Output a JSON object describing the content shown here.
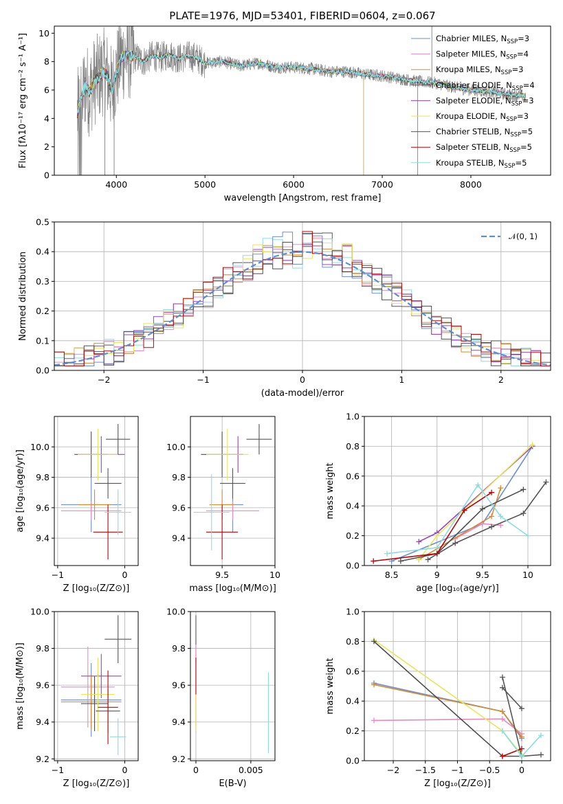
{
  "figure": {
    "title": "PLATE=1976, MJD=53401, FIBERID=0604, z=0.067"
  },
  "colors": {
    "data": "#808080",
    "series": [
      "#6a8fd6",
      "#e78ac3",
      "#d98a2b",
      "#4d4d4d",
      "#9b3fbf",
      "#e6e65a",
      "#555555",
      "#c00000",
      "#88dde0"
    ],
    "gaussian": "#5a8fd6"
  },
  "chart_data": [
    {
      "id": "spectrum",
      "type": "line",
      "title": "PLATE=1976, MJD=53401, FIBERID=0604, z=0.067",
      "xlabel": "wavelength [Angstrom, rest frame]",
      "ylabel": "Flux [fλ10⁻¹⁷ erg cm⁻² s⁻¹ A⁻¹]",
      "xlim": [
        3300,
        8900
      ],
      "ylim": [
        0,
        10.5
      ],
      "xticks": [
        4000,
        5000,
        6000,
        7000,
        8000
      ],
      "yticks": [
        0,
        2,
        4,
        6,
        8,
        10
      ],
      "grid": false,
      "legend_position": "top-right",
      "legend": [
        {
          "base": "Chabrier MILES, N",
          "sub": "SSP",
          "tail": "=3"
        },
        {
          "base": "Salpeter MILES, N",
          "sub": "SSP",
          "tail": "=4"
        },
        {
          "base": "Kroupa MILES, N",
          "sub": "SSP",
          "tail": "=3"
        },
        {
          "base": "Chabrier ELODIE, N",
          "sub": "SSP",
          "tail": "=4"
        },
        {
          "base": "Salpeter ELODIE, N",
          "sub": "SSP",
          "tail": "=3"
        },
        {
          "base": "Kroupa ELODIE, N",
          "sub": "SSP",
          "tail": "=3"
        },
        {
          "base": "Chabrier STELIB, N",
          "sub": "SSP",
          "tail": "=5"
        },
        {
          "base": "Salpeter STELIB, N",
          "sub": "SSP",
          "tail": "=5"
        },
        {
          "base": "Kroupa STELIB, N",
          "sub": "SSP",
          "tail": "=5"
        }
      ],
      "model_continuum": {
        "x": [
          3560,
          3650,
          3700,
          3750,
          3800,
          3850,
          3900,
          3950,
          4000,
          4050,
          4100,
          4200,
          4300,
          4400,
          4500,
          4600,
          4700,
          4800,
          4900,
          5000,
          5200,
          5400,
          5600,
          5800,
          6000,
          6200,
          6400,
          6600,
          6800,
          7000,
          7200,
          7400,
          7600,
          7800,
          8000,
          8200,
          8400,
          8600,
          8620
        ],
        "y": [
          4.3,
          6.4,
          5.8,
          6.6,
          6.9,
          7.3,
          7.0,
          5.9,
          7.2,
          8.3,
          8.4,
          8.4,
          8.0,
          8.4,
          8.3,
          8.5,
          8.2,
          8.4,
          8.3,
          7.9,
          8.0,
          7.7,
          7.9,
          7.6,
          7.6,
          7.5,
          7.3,
          7.3,
          7.1,
          7.0,
          6.8,
          6.6,
          6.5,
          6.2,
          6.0,
          5.9,
          5.7,
          5.6,
          5.3
        ]
      }
    },
    {
      "id": "residuals",
      "type": "line",
      "xlabel": "(data-model)/error",
      "ylabel": "Normed distribution",
      "xlim": [
        -2.5,
        2.5
      ],
      "ylim": [
        0,
        0.5
      ],
      "xticks": [
        -2,
        -1,
        0,
        1,
        2
      ],
      "yticks": [
        0.0,
        0.1,
        0.2,
        0.3,
        0.4,
        0.5
      ],
      "grid": true,
      "legend_position": "top-right",
      "legend_label": "𝒩(0, 1)",
      "gaussian": {
        "mean": 0,
        "sigma": 1
      }
    },
    {
      "id": "age_vs_Z",
      "type": "scatter",
      "xlabel": "Z [log₁₀(Z/Z⊙)]",
      "ylabel": "age  [log₁₀(age/yr)]",
      "xlim": [
        -1.05,
        0.2
      ],
      "ylim": [
        9.22,
        10.2
      ],
      "xticks": [
        -1,
        0
      ],
      "yticks": [
        9.4,
        9.6,
        9.8,
        10.0
      ],
      "grid": true,
      "points": [
        {
          "x": -0.5,
          "y": 9.62,
          "xerr": 0.45,
          "yerr": 0.18,
          "c": 0
        },
        {
          "x": -0.5,
          "y": 9.58,
          "xerr": 0.45,
          "yerr": 0.06,
          "c": 1
        },
        {
          "x": -0.45,
          "y": 9.62,
          "xerr": 0.25,
          "yerr": 0.1,
          "c": 2
        },
        {
          "x": -0.5,
          "y": 9.95,
          "xerr": 0.25,
          "yerr": 0.15,
          "c": 3
        },
        {
          "x": -0.35,
          "y": 9.95,
          "xerr": 0.35,
          "yerr": 0.12,
          "c": 4
        },
        {
          "x": -0.4,
          "y": 9.95,
          "xerr": 0.3,
          "yerr": 0.17,
          "c": 5
        },
        {
          "x": -0.25,
          "y": 9.76,
          "xerr": 0.2,
          "yerr": 0.1,
          "c": 6
        },
        {
          "x": -0.25,
          "y": 9.44,
          "xerr": 0.22,
          "yerr": 0.18,
          "c": 7
        },
        {
          "x": -0.1,
          "y": 9.57,
          "xerr": 0.2,
          "yerr": 0.15,
          "c": 8
        },
        {
          "x": -0.1,
          "y": 10.05,
          "xerr": 0.18,
          "yerr": 0.1,
          "c": 6
        }
      ]
    },
    {
      "id": "age_vs_mass",
      "type": "scatter",
      "xlabel": "mass [log₁₀(M/M⊙)]",
      "ylabel": "",
      "xlim": [
        9.2,
        10.0
      ],
      "ylim": [
        9.22,
        10.2
      ],
      "xticks": [
        9.5,
        10.0
      ],
      "yticks": [
        9.4,
        9.6,
        9.8,
        10.0
      ],
      "grid": true,
      "points": [
        {
          "x": 9.6,
          "y": 9.62,
          "xerr": 0.1,
          "yerr": 0.18,
          "c": 0
        },
        {
          "x": 9.6,
          "y": 9.58,
          "xerr": 0.25,
          "yerr": 0.06,
          "c": 1
        },
        {
          "x": 9.5,
          "y": 9.62,
          "xerr": 0.12,
          "yerr": 0.1,
          "c": 2
        },
        {
          "x": 9.5,
          "y": 9.95,
          "xerr": 0.2,
          "yerr": 0.15,
          "c": 3
        },
        {
          "x": 9.65,
          "y": 9.95,
          "xerr": 0.05,
          "yerr": 0.12,
          "c": 4
        },
        {
          "x": 9.55,
          "y": 9.95,
          "xerr": 0.2,
          "yerr": 0.17,
          "c": 5
        },
        {
          "x": 9.6,
          "y": 9.76,
          "xerr": 0.12,
          "yerr": 0.1,
          "c": 6
        },
        {
          "x": 9.5,
          "y": 9.44,
          "xerr": 0.15,
          "yerr": 0.18,
          "c": 7
        },
        {
          "x": 9.4,
          "y": 9.57,
          "xerr": 0.17,
          "yerr": 0.25,
          "c": 8
        },
        {
          "x": 9.85,
          "y": 10.05,
          "xerr": 0.12,
          "yerr": 0.1,
          "c": 6
        }
      ]
    },
    {
      "id": "massweight_vs_age",
      "type": "line",
      "xlabel": "age  [log₁₀(age/yr)]",
      "ylabel": "mass weight",
      "xlim": [
        8.2,
        10.25
      ],
      "ylim": [
        0,
        1.0
      ],
      "xticks": [
        8.5,
        9.0,
        9.5,
        10.0
      ],
      "yticks": [
        0.0,
        0.2,
        0.4,
        0.6,
        0.8,
        1.0
      ],
      "grid": true,
      "series": [
        {
          "c": 0,
          "x": [
            8.5,
            9.5,
            10.05
          ],
          "y": [
            0.03,
            0.28,
            0.8
          ]
        },
        {
          "c": 1,
          "x": [
            9.2,
            9.5,
            9.7
          ],
          "y": [
            0.18,
            0.28,
            0.27
          ]
        },
        {
          "c": 2,
          "x": [
            8.8,
            9.6,
            9.7
          ],
          "y": [
            0.04,
            0.33,
            0.52
          ]
        },
        {
          "c": 4,
          "x": [
            8.8,
            9.0,
            10.05
          ],
          "y": [
            0.16,
            0.22,
            0.8
          ]
        },
        {
          "c": 5,
          "x": [
            8.8,
            9.0,
            10.05
          ],
          "y": [
            0.04,
            0.2,
            0.81
          ]
        },
        {
          "c": 6,
          "x": [
            8.9,
            9.2,
            9.6,
            9.95,
            10.2
          ],
          "y": [
            0.04,
            0.15,
            0.26,
            0.35,
            0.56
          ]
        },
        {
          "c": 3,
          "x": [
            8.6,
            9.0,
            9.5,
            9.95
          ],
          "y": [
            0.03,
            0.08,
            0.38,
            0.51
          ]
        },
        {
          "c": 7,
          "x": [
            8.3,
            9.0,
            9.3,
            9.6
          ],
          "y": [
            0.03,
            0.08,
            0.37,
            0.49
          ]
        },
        {
          "c": 8,
          "x": [
            8.45,
            9.0,
            9.45,
            9.7,
            10.0
          ],
          "y": [
            0.08,
            0.12,
            0.54,
            0.33,
            0.2
          ]
        }
      ]
    },
    {
      "id": "mass_vs_Z",
      "type": "scatter",
      "xlabel": "Z [log₁₀(Z/Z⊙)]",
      "ylabel": "mass [log₁₀(M/M⊙)]",
      "xlim": [
        -1.05,
        0.2
      ],
      "ylim": [
        9.19,
        10.0
      ],
      "xticks": [
        -1,
        0
      ],
      "yticks": [
        9.2,
        9.4,
        9.6,
        9.8,
        10.0
      ],
      "grid": true,
      "points": [
        {
          "x": -0.5,
          "y": 9.52,
          "xerr": 0.45,
          "yerr": 0.2,
          "c": 0
        },
        {
          "x": -0.55,
          "y": 9.59,
          "xerr": 0.4,
          "yerr": 0.22,
          "c": 1
        },
        {
          "x": -0.5,
          "y": 9.51,
          "xerr": 0.45,
          "yerr": 0.15,
          "c": 2
        },
        {
          "x": -0.45,
          "y": 9.5,
          "xerr": 0.2,
          "yerr": 0.15,
          "c": 3
        },
        {
          "x": -0.35,
          "y": 9.65,
          "xerr": 0.3,
          "yerr": 0.12,
          "c": 4
        },
        {
          "x": -0.4,
          "y": 9.55,
          "xerr": 0.25,
          "yerr": 0.2,
          "c": 5
        },
        {
          "x": -0.25,
          "y": 9.46,
          "xerr": 0.18,
          "yerr": 0.12,
          "c": 6
        },
        {
          "x": -0.25,
          "y": 9.48,
          "xerr": 0.15,
          "yerr": 0.2,
          "c": 7
        },
        {
          "x": -0.1,
          "y": 9.32,
          "xerr": 0.12,
          "yerr": 0.1,
          "c": 8
        },
        {
          "x": -0.1,
          "y": 9.85,
          "xerr": 0.2,
          "yerr": 0.13,
          "c": 6
        }
      ]
    },
    {
      "id": "mass_vs_EBV",
      "type": "scatter",
      "xlabel": "E(B-V)",
      "ylabel": "",
      "xlim": [
        -0.0005,
        0.0072
      ],
      "ylim": [
        9.19,
        10.0
      ],
      "xticks": [
        0.0,
        0.005
      ],
      "ytickvals": [
        9.2,
        9.4,
        9.6,
        9.8,
        10.0
      ],
      "grid": true,
      "points": [
        {
          "x": 0.0,
          "y": 9.85,
          "yerr": 0.13,
          "c": 6
        },
        {
          "x": 0.0,
          "y": 9.6,
          "yerr": 0.22,
          "c": 1
        },
        {
          "x": 0.0,
          "y": 9.55,
          "yerr": 0.2,
          "c": 7
        },
        {
          "x": 0.0,
          "y": 9.45,
          "yerr": 0.1,
          "c": 5
        },
        {
          "x": 0.0066,
          "y": 9.45,
          "yerr": 0.22,
          "c": 8
        }
      ]
    },
    {
      "id": "massweight_vs_Z",
      "type": "line",
      "xlabel": "Z [log₁₀(Z/Z⊙)]",
      "ylabel": "mass weight",
      "xlim": [
        -2.45,
        0.45
      ],
      "ylim": [
        0,
        1.0
      ],
      "xticks": [
        -2.0,
        -1.5,
        -1.0,
        -0.5,
        0.0
      ],
      "yticks": [
        0.0,
        0.2,
        0.4,
        0.6,
        0.8,
        1.0
      ],
      "grid": true,
      "series": [
        {
          "c": 0,
          "x": [
            -2.3,
            -0.3,
            0.0
          ],
          "y": [
            0.52,
            0.33,
            0.15
          ]
        },
        {
          "c": 1,
          "x": [
            -2.3,
            -0.3,
            0.0
          ],
          "y": [
            0.27,
            0.28,
            0.18
          ]
        },
        {
          "c": 2,
          "x": [
            -2.3,
            -0.3,
            0.0
          ],
          "y": [
            0.51,
            0.33,
            0.16
          ]
        },
        {
          "c": 5,
          "x": [
            -2.3,
            -0.3,
            0.0
          ],
          "y": [
            0.81,
            0.2,
            0.04
          ]
        },
        {
          "c": 3,
          "x": [
            -2.3,
            -0.3,
            0.0
          ],
          "y": [
            0.8,
            0.03,
            0.03
          ]
        },
        {
          "c": 6,
          "x": [
            -0.3,
            0.0,
            0.3
          ],
          "y": [
            0.56,
            0.03,
            0.04
          ]
        },
        {
          "c": 6,
          "x": [
            -0.3,
            0.0
          ],
          "y": [
            0.49,
            0.35
          ]
        },
        {
          "c": 7,
          "x": [
            -0.3,
            0.0
          ],
          "y": [
            0.03,
            0.08
          ]
        },
        {
          "c": 8,
          "x": [
            -0.3,
            0.0,
            0.3
          ],
          "y": [
            0.2,
            0.03,
            0.17
          ]
        }
      ]
    }
  ]
}
